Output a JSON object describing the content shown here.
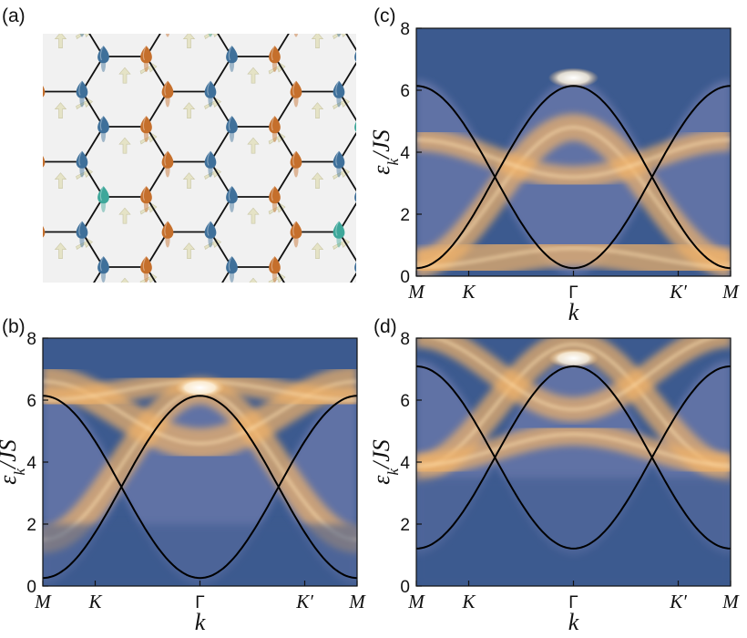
{
  "panel_labels": [
    "(a)",
    "(b)",
    "(c)",
    "(d)"
  ],
  "colors": {
    "background_blue": "#3c5a8f",
    "spectral_orange": "#f3b469",
    "spectral_white": "#ffffff",
    "lattice_background": "#f1f1f1",
    "site_orange": "#c56f2c",
    "site_blue": "#3f709a",
    "site_teal": "#3ea79a",
    "arrow_cream": "#e5e3c6",
    "band_line": "#000000"
  },
  "chart_data": [
    {
      "panel": "(a)",
      "type": "diagram",
      "description_elements": [
        "honeycomb lattice",
        "spin cones",
        "spin arrows"
      ]
    },
    {
      "panel": "(b)",
      "type": "heatmap",
      "ylabel_parts": [
        "ε",
        "k",
        "/",
        "JS"
      ],
      "xlabel": "k",
      "x_ticks": [
        "M",
        "K",
        "Γ",
        "K′",
        "M"
      ],
      "x_positions": [
        0,
        0.5,
        1.5,
        2.5,
        3.0
      ],
      "xlim": [
        0,
        3.0
      ],
      "y_ticks": [
        "0",
        "2",
        "4",
        "6",
        "8"
      ],
      "ylim": [
        0,
        8
      ],
      "bands": {
        "center": 3.2,
        "amplitude": 3.0
      },
      "bright_bands": [
        {
          "center": 3.9,
          "amplitude": 2.4,
          "width": 0.22
        },
        {
          "center": 5.6,
          "amplitude": 1.0,
          "width": 0.25
        },
        {
          "center": 6.3,
          "amplitude": 0.3,
          "width": 0.18
        }
      ],
      "blue_below": 2.0
    },
    {
      "panel": "(c)",
      "type": "heatmap",
      "ylabel_parts": [
        "ε",
        "k",
        "/",
        "JS"
      ],
      "xlabel": "k",
      "x_ticks": [
        "M",
        "K",
        "Γ",
        "K′",
        "M"
      ],
      "x_positions": [
        0,
        0.5,
        1.5,
        2.5,
        3.0
      ],
      "xlim": [
        0,
        3.0
      ],
      "y_ticks": [
        "0",
        "2",
        "4",
        "6",
        "8"
      ],
      "ylim": [
        0,
        8
      ],
      "bands": {
        "center": 3.2,
        "amplitude": 3.0
      },
      "bright_bands": [
        {
          "center": 2.6,
          "amplitude": 2.2,
          "width": 0.22
        },
        {
          "center": 3.8,
          "amplitude": 0.6,
          "width": 0.18
        },
        {
          "center": 0.6,
          "amplitude": 0.3,
          "width": 0.3
        }
      ],
      "blue_below": -1
    },
    {
      "panel": "(d)",
      "type": "heatmap",
      "ylabel_parts": [
        "ε",
        "k",
        "/",
        "JS"
      ],
      "xlabel": "k",
      "x_ticks": [
        "M",
        "K",
        "Γ",
        "K′",
        "M"
      ],
      "x_positions": [
        0,
        0.5,
        1.5,
        2.5,
        3.0
      ],
      "xlim": [
        0,
        3.0
      ],
      "y_ticks": [
        "0",
        "2",
        "4",
        "6",
        "8"
      ],
      "ylim": [
        0,
        8
      ],
      "bands": {
        "center": 4.15,
        "amplitude": 3.0
      },
      "bright_bands": [
        {
          "center": 5.8,
          "amplitude": 2.0,
          "width": 0.22
        },
        {
          "center": 6.9,
          "amplitude": 1.2,
          "width": 0.2
        },
        {
          "center": 4.4,
          "amplitude": 0.5,
          "width": 0.18
        }
      ],
      "blue_below": 3.5
    }
  ]
}
